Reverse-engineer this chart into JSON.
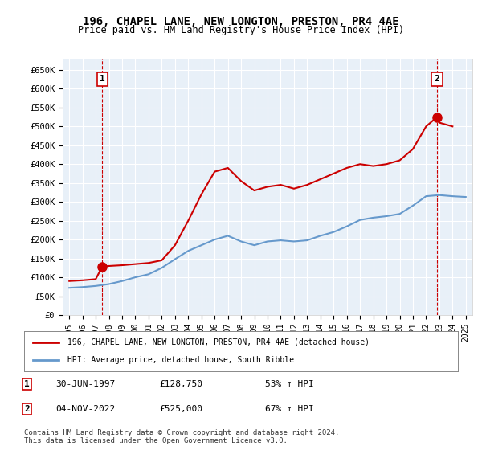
{
  "title": "196, CHAPEL LANE, NEW LONGTON, PRESTON, PR4 4AE",
  "subtitle": "Price paid vs. HM Land Registry's House Price Index (HPI)",
  "ylabel_ticks": [
    "£0",
    "£50K",
    "£100K",
    "£150K",
    "£200K",
    "£250K",
    "£300K",
    "£350K",
    "£400K",
    "£450K",
    "£500K",
    "£550K",
    "£600K",
    "£650K"
  ],
  "ytick_values": [
    0,
    50000,
    100000,
    150000,
    200000,
    250000,
    300000,
    350000,
    400000,
    450000,
    500000,
    550000,
    600000,
    650000
  ],
  "xlim_years": [
    1994.5,
    2025.5
  ],
  "ylim": [
    0,
    680000
  ],
  "background_color": "#e8f0f8",
  "plot_bg_color": "#e8f0f8",
  "grid_color": "#ffffff",
  "sale1_date": 1997.5,
  "sale1_price": 128750,
  "sale1_label": "1",
  "sale2_date": 2022.83,
  "sale2_price": 525000,
  "sale2_label": "2",
  "legend_property": "196, CHAPEL LANE, NEW LONGTON, PRESTON, PR4 4AE (detached house)",
  "legend_hpi": "HPI: Average price, detached house, South Ribble",
  "annotation1_date": "30-JUN-1997",
  "annotation1_price": "£128,750",
  "annotation1_hpi": "53% ↑ HPI",
  "annotation2_date": "04-NOV-2022",
  "annotation2_price": "£525,000",
  "annotation2_hpi": "67% ↑ HPI",
  "footer": "Contains HM Land Registry data © Crown copyright and database right 2024.\nThis data is licensed under the Open Government Licence v3.0.",
  "line_color_property": "#cc0000",
  "line_color_hpi": "#6699cc",
  "marker_color": "#cc0000",
  "vline_color": "#cc0000",
  "hpi_years": [
    1995,
    1996,
    1997,
    1998,
    1999,
    2000,
    2001,
    2002,
    2003,
    2004,
    2005,
    2006,
    2007,
    2008,
    2009,
    2010,
    2011,
    2012,
    2013,
    2014,
    2015,
    2016,
    2017,
    2018,
    2019,
    2020,
    2021,
    2022,
    2023,
    2024,
    2025
  ],
  "hpi_values": [
    72000,
    74000,
    77000,
    82000,
    90000,
    100000,
    108000,
    125000,
    148000,
    170000,
    185000,
    200000,
    210000,
    195000,
    185000,
    195000,
    198000,
    195000,
    198000,
    210000,
    220000,
    235000,
    252000,
    258000,
    262000,
    268000,
    290000,
    315000,
    318000,
    315000,
    313000
  ],
  "property_years": [
    1995,
    1996,
    1997,
    1997.5,
    1998,
    1999,
    2000,
    2001,
    2002,
    2003,
    2004,
    2005,
    2006,
    2007,
    2008,
    2009,
    2010,
    2011,
    2012,
    2013,
    2014,
    2015,
    2016,
    2017,
    2018,
    2019,
    2020,
    2021,
    2022,
    2022.83,
    2023,
    2024
  ],
  "property_values": [
    90000,
    92000,
    95000,
    128750,
    130000,
    132000,
    135000,
    138000,
    145000,
    185000,
    250000,
    320000,
    380000,
    390000,
    355000,
    330000,
    340000,
    345000,
    335000,
    345000,
    360000,
    375000,
    390000,
    400000,
    395000,
    400000,
    410000,
    440000,
    500000,
    525000,
    510000,
    500000
  ]
}
